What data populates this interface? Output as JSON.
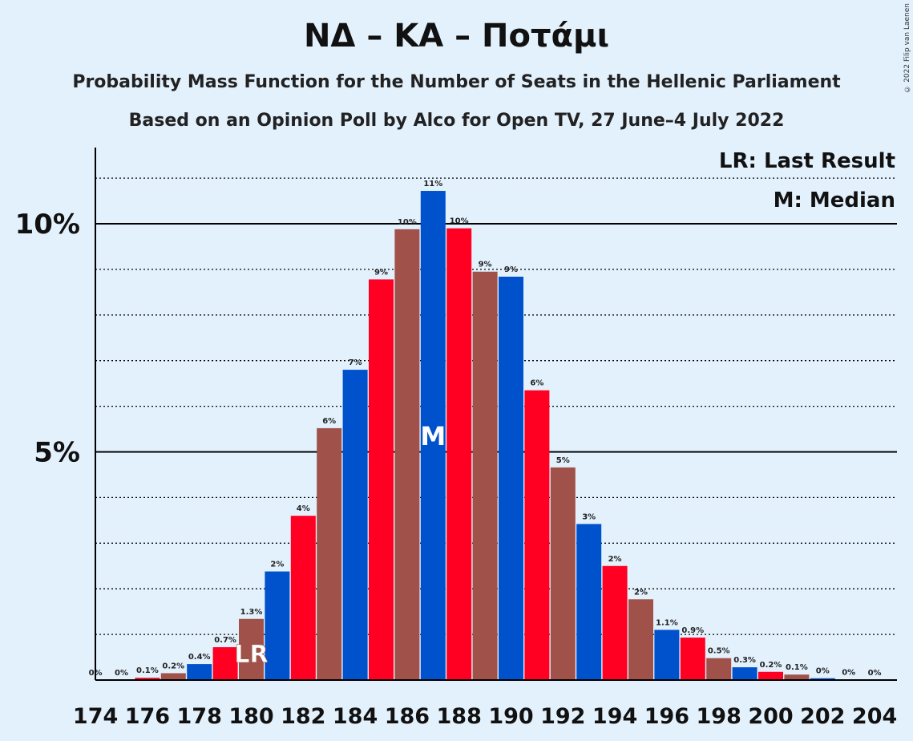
{
  "title": "ΝΔ – ΚΑ – Ποτάμι",
  "subtitle": "Probability Mass Function for the Number of Seats in the Hellenic Parliament",
  "subtitle2": "Based on an Opinion Poll by Alco for Open TV, 27 June–4 July 2022",
  "copyright": "© 2022 Filip van Laenen",
  "legend": {
    "last_result": "LR: Last Result",
    "median": "M: Median"
  },
  "markers": {
    "last_result_label": "LR",
    "median_label": "M"
  },
  "colors": {
    "blue": "#0052cc",
    "red": "#ff0022",
    "brown": "#a0524a",
    "background": "#e3f1fd"
  },
  "chart_data": {
    "type": "bar",
    "xlabel": "",
    "ylabel": "",
    "ylim": [
      0,
      11.7
    ],
    "y_ticks": [
      {
        "value": 5,
        "label": "5%"
      },
      {
        "value": 10,
        "label": "10%"
      }
    ],
    "x_tick_labels": [
      "174",
      "176",
      "178",
      "180",
      "182",
      "184",
      "186",
      "188",
      "190",
      "192",
      "194",
      "196",
      "198",
      "200",
      "202",
      "204"
    ],
    "last_result": 180,
    "median": 187,
    "categories": [
      174,
      175,
      176,
      177,
      178,
      179,
      180,
      181,
      182,
      183,
      184,
      185,
      186,
      187,
      188,
      189,
      190,
      191,
      192,
      193,
      194,
      195,
      196,
      197,
      198,
      199,
      200,
      201,
      202,
      203,
      204
    ],
    "values": [
      0,
      0,
      0.05,
      0.15,
      0.35,
      0.72,
      1.34,
      2.38,
      3.6,
      5.52,
      6.8,
      8.78,
      9.88,
      10.72,
      9.9,
      8.95,
      8.84,
      6.35,
      4.66,
      3.42,
      2.5,
      1.77,
      1.1,
      0.93,
      0.48,
      0.28,
      0.18,
      0.12,
      0.04,
      0.01,
      0
    ],
    "value_labels": [
      "0%",
      "0%",
      "0.1%",
      "0.2%",
      "0.4%",
      "0.7%",
      "1.3%",
      "2%",
      "4%",
      "6%",
      "7%",
      "9%",
      "10%",
      "11%",
      "10%",
      "9%",
      "9%",
      "6%",
      "5%",
      "3%",
      "2%",
      "2%",
      "1.1%",
      "0.9%",
      "0.5%",
      "0.3%",
      "0.2%",
      "0.1%",
      "0%",
      "0%",
      "0%"
    ]
  }
}
